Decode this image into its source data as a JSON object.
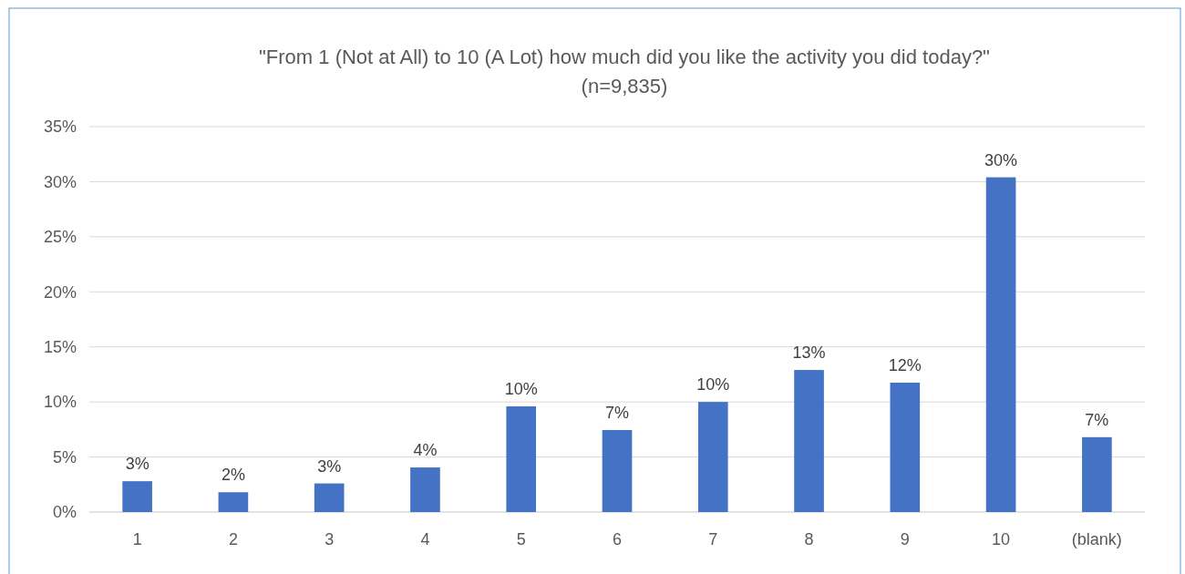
{
  "chart_data": {
    "type": "bar",
    "title": "\"From 1 (Not at All) to 10 (A Lot) how much did you like the activity you did today?\"",
    "subtitle": "(n=9,835)",
    "categories": [
      "1",
      "2",
      "3",
      "4",
      "5",
      "6",
      "7",
      "8",
      "9",
      "10",
      "(blank)"
    ],
    "values": [
      2.8,
      1.8,
      2.6,
      4.05,
      9.6,
      7.45,
      10.0,
      12.9,
      11.75,
      30.4,
      6.8
    ],
    "value_labels": [
      "3%",
      "2%",
      "3%",
      "4%",
      "10%",
      "7%",
      "10%",
      "13%",
      "12%",
      "30%",
      "7%"
    ],
    "color": "#4472c4",
    "ylim": [
      0,
      35
    ],
    "yticks": [
      {
        "value": 0,
        "label": "0%"
      },
      {
        "value": 5,
        "label": "5%"
      },
      {
        "value": 10,
        "label": "10%"
      },
      {
        "value": 15,
        "label": "15%"
      },
      {
        "value": 20,
        "label": "20%"
      },
      {
        "value": 25,
        "label": "25%"
      },
      {
        "value": 30,
        "label": "30%"
      },
      {
        "value": 35,
        "label": "35%"
      }
    ],
    "grid": "y"
  }
}
